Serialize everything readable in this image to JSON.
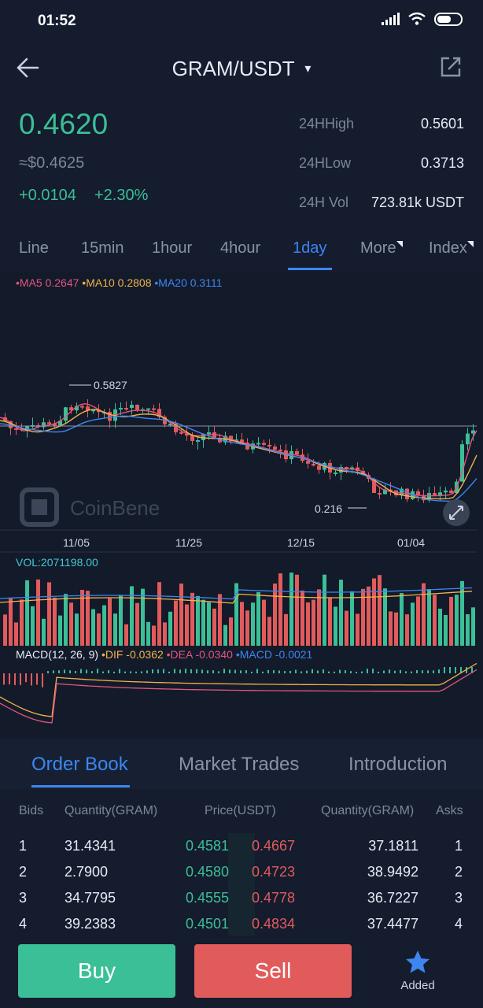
{
  "status_bar": {
    "time": "01:52"
  },
  "header": {
    "pair": "GRAM/USDT",
    "dropdown_glyph": "▾"
  },
  "ticker": {
    "last_price": "0.4620",
    "usd_price": "≈$0.4625",
    "change_abs": "+0.0104",
    "change_pct": "+2.30%",
    "high_label": "24HHigh",
    "high_value": "0.5601",
    "low_label": "24HLow",
    "low_value": "0.3713",
    "vol_label": "24H Vol",
    "vol_value": "723.81k USDT"
  },
  "timeframes": [
    {
      "label": "Line"
    },
    {
      "label": "15min"
    },
    {
      "label": "1hour"
    },
    {
      "label": "4hour"
    },
    {
      "label": "1day",
      "active": true
    },
    {
      "label": "More"
    },
    {
      "label": "Index"
    }
  ],
  "chart": {
    "ma_legend": {
      "ma5": "•MA5 0.2647",
      "ma10": "•MA10 0.2808",
      "ma20": "•MA20 0.3111"
    },
    "max_label": "0.5827",
    "min_label": "0.216",
    "watermark": "CoinBene",
    "x_ticks": [
      "11/05",
      "11/25",
      "12/15",
      "01/04"
    ],
    "vol_label": "VOL:2071198.00",
    "macd_legend": {
      "name": "MACD(12, 26, 9)",
      "dif": "•DIF -0.0362",
      "dea": "•DEA -0.0340",
      "macd": "•MACD -0.0021"
    },
    "colors": {
      "up": "#3bbf96",
      "down": "#e25b5b",
      "ma5": "#e2567f",
      "ma10": "#f0b24a",
      "ma20": "#3d86f0"
    }
  },
  "tabs": [
    {
      "label": "Order Book",
      "active": true
    },
    {
      "label": "Market Trades"
    },
    {
      "label": "Introduction"
    }
  ],
  "order_book": {
    "headers": {
      "bids": "Bids",
      "qty_left": "Quantity(GRAM)",
      "price": "Price(USDT)",
      "qty_right": "Quantity(GRAM)",
      "asks": "Asks"
    },
    "rows": [
      {
        "n": "1",
        "bid_qty": "31.4341",
        "bid_price": "0.4581",
        "ask_price": "0.4667",
        "ask_qty": "37.1811",
        "ask_n": "1"
      },
      {
        "n": "2",
        "bid_qty": "2.7900",
        "bid_price": "0.4580",
        "ask_price": "0.4723",
        "ask_qty": "38.9492",
        "ask_n": "2"
      },
      {
        "n": "3",
        "bid_qty": "34.7795",
        "bid_price": "0.4555",
        "ask_price": "0.4778",
        "ask_qty": "36.7227",
        "ask_n": "3"
      },
      {
        "n": "4",
        "bid_qty": "39.2383",
        "bid_price": "0.4501",
        "ask_price": "0.4834",
        "ask_qty": "37.4477",
        "ask_n": "4"
      }
    ]
  },
  "actions": {
    "buy": "Buy",
    "sell": "Sell",
    "added": "Added"
  }
}
